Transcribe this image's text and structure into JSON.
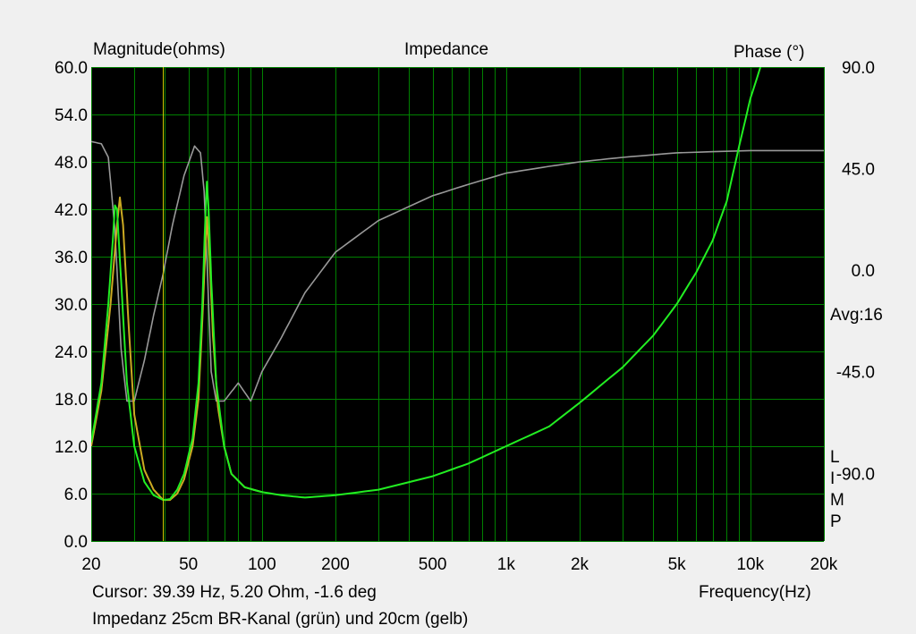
{
  "chart_data": {
    "type": "line",
    "title": "Impedance",
    "ylabel_left": "Magnitude(ohms)",
    "ylabel_right": "Phase (°)",
    "xlabel": "Frequency(Hz)",
    "x_scale": "log",
    "xlim": [
      20,
      20000
    ],
    "ylim_left": [
      0,
      60
    ],
    "ylim_right": [
      -120,
      90
    ],
    "grid": true,
    "x_ticks": [
      {
        "v": 20,
        "label": "20"
      },
      {
        "v": 50,
        "label": "50"
      },
      {
        "v": 100,
        "label": "100"
      },
      {
        "v": 200,
        "label": "200"
      },
      {
        "v": 500,
        "label": "500"
      },
      {
        "v": 1000,
        "label": "1k"
      },
      {
        "v": 2000,
        "label": "2k"
      },
      {
        "v": 5000,
        "label": "5k"
      },
      {
        "v": 10000,
        "label": "10k"
      },
      {
        "v": 20000,
        "label": "20k"
      }
    ],
    "y_left_ticks": [
      {
        "v": 0,
        "label": "0.0"
      },
      {
        "v": 6,
        "label": "6.0"
      },
      {
        "v": 12,
        "label": "12.0"
      },
      {
        "v": 18,
        "label": "18.0"
      },
      {
        "v": 24,
        "label": "24.0"
      },
      {
        "v": 30,
        "label": "30.0"
      },
      {
        "v": 36,
        "label": "36.0"
      },
      {
        "v": 42,
        "label": "42.0"
      },
      {
        "v": 48,
        "label": "48.0"
      },
      {
        "v": 54,
        "label": "54.0"
      },
      {
        "v": 60,
        "label": "60.0"
      }
    ],
    "y_right_ticks": [
      {
        "v": 90,
        "label": "90.0"
      },
      {
        "v": 45,
        "label": "45.0"
      },
      {
        "v": 0,
        "label": "0.0"
      },
      {
        "v": -45,
        "label": "-45.0"
      },
      {
        "v": -90,
        "label": "-90.0"
      }
    ],
    "series": [
      {
        "color": "#22ee22",
        "axis": "left",
        "points": [
          [
            20,
            12.5
          ],
          [
            22,
            20
          ],
          [
            23.5,
            30
          ],
          [
            24.5,
            38
          ],
          [
            25,
            42.5
          ],
          [
            25.5,
            42
          ],
          [
            26.5,
            33
          ],
          [
            28,
            20
          ],
          [
            30,
            12
          ],
          [
            33,
            7.5
          ],
          [
            36,
            5.8
          ],
          [
            39.4,
            5.2
          ],
          [
            42,
            5.3
          ],
          [
            45,
            6.5
          ],
          [
            48,
            8.5
          ],
          [
            52,
            13
          ],
          [
            55,
            20
          ],
          [
            57,
            30
          ],
          [
            58.5,
            40
          ],
          [
            59.5,
            45.5
          ],
          [
            60.5,
            42
          ],
          [
            62,
            33
          ],
          [
            65,
            20
          ],
          [
            70,
            12
          ],
          [
            75,
            8.5
          ],
          [
            85,
            6.8
          ],
          [
            100,
            6.2
          ],
          [
            120,
            5.8
          ],
          [
            150,
            5.5
          ],
          [
            200,
            5.8
          ],
          [
            300,
            6.5
          ],
          [
            500,
            8.2
          ],
          [
            700,
            9.8
          ],
          [
            1000,
            12
          ],
          [
            1500,
            14.5
          ],
          [
            2000,
            17.5
          ],
          [
            3000,
            22
          ],
          [
            4000,
            26
          ],
          [
            5000,
            30
          ],
          [
            6000,
            34
          ],
          [
            7000,
            38
          ],
          [
            8000,
            43
          ],
          [
            9000,
            50
          ],
          [
            10000,
            56
          ],
          [
            11000,
            60
          ]
        ]
      },
      {
        "color": "#ccaa22",
        "axis": "left",
        "points": [
          [
            20,
            12
          ],
          [
            22,
            19
          ],
          [
            24,
            30
          ],
          [
            25.5,
            40
          ],
          [
            26.2,
            43.5
          ],
          [
            27,
            40
          ],
          [
            28.5,
            27
          ],
          [
            30,
            16
          ],
          [
            33,
            9
          ],
          [
            36,
            6.5
          ],
          [
            39.4,
            5.2
          ],
          [
            42,
            5.2
          ],
          [
            45,
            6
          ],
          [
            48,
            7.8
          ],
          [
            52,
            12
          ],
          [
            55,
            18
          ],
          [
            57,
            28
          ],
          [
            58.5,
            36
          ],
          [
            59.5,
            41
          ],
          [
            61,
            36
          ],
          [
            63,
            26
          ],
          [
            66,
            17
          ],
          [
            70,
            12
          ],
          [
            75,
            8.5
          ],
          [
            85,
            6.8
          ],
          [
            100,
            6.2
          ]
        ]
      },
      {
        "color": "#999999",
        "axis": "right",
        "points": [
          [
            20,
            57
          ],
          [
            22,
            56
          ],
          [
            23.5,
            50
          ],
          [
            25,
            18
          ],
          [
            26.5,
            -35
          ],
          [
            28,
            -58
          ],
          [
            30,
            -58
          ],
          [
            33,
            -40
          ],
          [
            36,
            -20
          ],
          [
            39.4,
            -1.6
          ],
          [
            43,
            20
          ],
          [
            48,
            42
          ],
          [
            53,
            55
          ],
          [
            56,
            52
          ],
          [
            58,
            35
          ],
          [
            60,
            -5
          ],
          [
            62,
            -45
          ],
          [
            65,
            -58
          ],
          [
            70,
            -58
          ],
          [
            80,
            -50
          ],
          [
            90,
            -58
          ],
          [
            100,
            -45
          ],
          [
            120,
            -30
          ],
          [
            150,
            -10
          ],
          [
            200,
            8
          ],
          [
            300,
            22
          ],
          [
            500,
            33
          ],
          [
            700,
            38
          ],
          [
            1000,
            43
          ],
          [
            1500,
            46
          ],
          [
            2000,
            48
          ],
          [
            3000,
            50
          ],
          [
            5000,
            52
          ],
          [
            10000,
            53
          ],
          [
            20000,
            53
          ]
        ]
      }
    ],
    "cursor": {
      "x": 39.39,
      "magnitude": 5.2,
      "phase": -1.6
    },
    "annotations": {
      "avg": "Avg:16",
      "limp": [
        "L",
        "I",
        "M",
        "P"
      ]
    }
  },
  "footer": {
    "cursor_text": "Cursor: 39.39 Hz, 5.20 Ohm, -1.6 deg",
    "caption": "Impedanz 25cm BR-Kanal (grün) und 20cm (gelb)"
  },
  "colors": {
    "plot_bg": "#000000",
    "grid": "#008000",
    "cursor": "#cccc00",
    "page_bg": "#f0f0f0"
  }
}
